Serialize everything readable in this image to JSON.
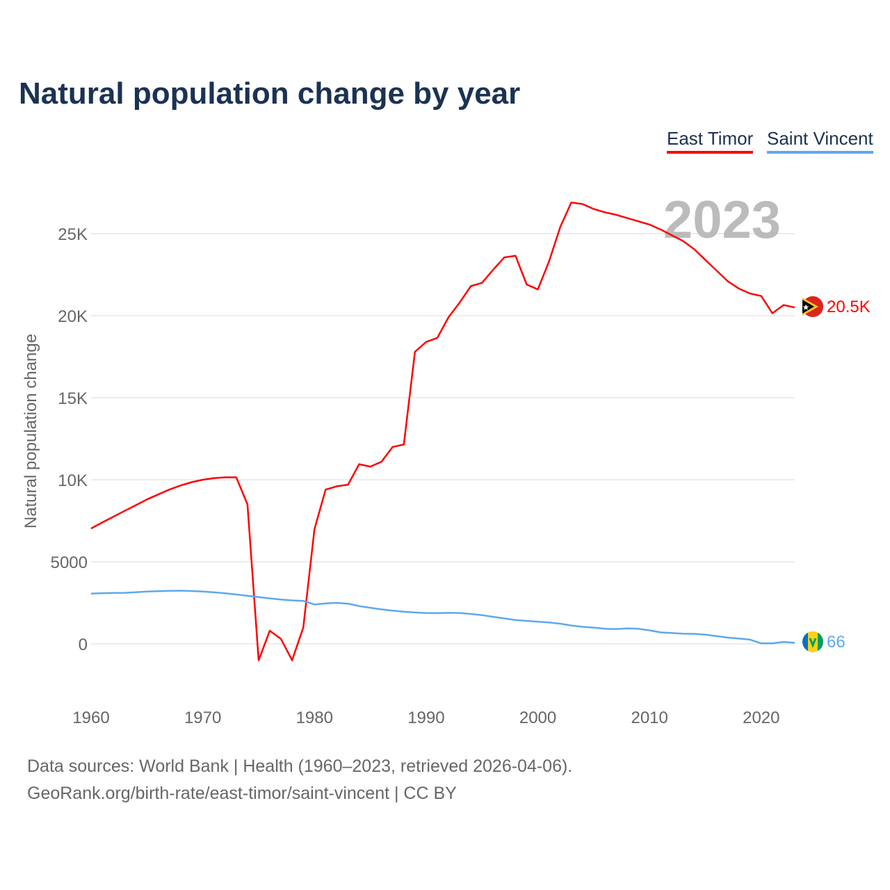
{
  "chart_data": {
    "type": "line",
    "title": "Natural population change by year",
    "xlabel": "",
    "ylabel": "Natural population change",
    "year_label": "2023",
    "xlim": [
      1960,
      2023
    ],
    "ylim": [
      -3000,
      28500
    ],
    "x_ticks": [
      1960,
      1970,
      1980,
      1990,
      2000,
      2010,
      2020
    ],
    "y_ticks": [
      0,
      5000,
      10000,
      15000,
      20000,
      25000
    ],
    "y_tick_labels": [
      "0",
      "5000",
      "10K",
      "15K",
      "20K",
      "25K"
    ],
    "grid": true,
    "legend_position": "top-right",
    "x": [
      1960,
      1961,
      1962,
      1963,
      1964,
      1965,
      1966,
      1967,
      1968,
      1969,
      1970,
      1971,
      1972,
      1973,
      1974,
      1975,
      1976,
      1977,
      1978,
      1979,
      1980,
      1981,
      1982,
      1983,
      1984,
      1985,
      1986,
      1987,
      1988,
      1989,
      1990,
      1991,
      1992,
      1993,
      1994,
      1995,
      1996,
      1997,
      1998,
      1999,
      2000,
      2001,
      2002,
      2003,
      2004,
      2005,
      2006,
      2007,
      2008,
      2009,
      2010,
      2011,
      2012,
      2013,
      2014,
      2015,
      2016,
      2017,
      2018,
      2019,
      2020,
      2021,
      2022,
      2023
    ],
    "series": [
      {
        "name": "East Timor",
        "color": "#ff0000",
        "end_label": "20.5K",
        "values": [
          7030,
          7400,
          7750,
          8100,
          8450,
          8800,
          9100,
          9400,
          9650,
          9850,
          10000,
          10100,
          10150,
          10150,
          8500,
          -1000,
          800,
          300,
          -1000,
          1000,
          7000,
          9400,
          9600,
          9700,
          10950,
          10800,
          11100,
          12000,
          12150,
          17800,
          18400,
          18650,
          19900,
          20800,
          21800,
          22000,
          22800,
          23550,
          23650,
          21900,
          21600,
          23300,
          25400,
          26900,
          26800,
          26500,
          26300,
          26150,
          25950,
          25750,
          25550,
          25250,
          24900,
          24550,
          24050,
          23400,
          22750,
          22100,
          21650,
          21350,
          21200,
          20150,
          20650,
          20500
        ]
      },
      {
        "name": "Saint Vincent",
        "color": "#5ea8ee",
        "end_label": "66",
        "values": [
          3060,
          3090,
          3100,
          3110,
          3150,
          3190,
          3210,
          3230,
          3240,
          3220,
          3190,
          3140,
          3080,
          3010,
          2930,
          2850,
          2770,
          2700,
          2650,
          2620,
          2400,
          2460,
          2500,
          2450,
          2300,
          2200,
          2100,
          2020,
          1960,
          1910,
          1880,
          1870,
          1890,
          1880,
          1820,
          1750,
          1650,
          1550,
          1450,
          1400,
          1350,
          1300,
          1230,
          1120,
          1040,
          990,
          920,
          900,
          940,
          920,
          820,
          700,
          660,
          620,
          610,
          560,
          470,
          380,
          320,
          260,
          30,
          30,
          120,
          66
        ]
      }
    ]
  },
  "footer": {
    "line1": "Data sources: World Bank | Health (1960–2023, retrieved 2026-04-06).",
    "line2": "GeoRank.org/birth-rate/east-timor/saint-vincent | CC BY"
  }
}
